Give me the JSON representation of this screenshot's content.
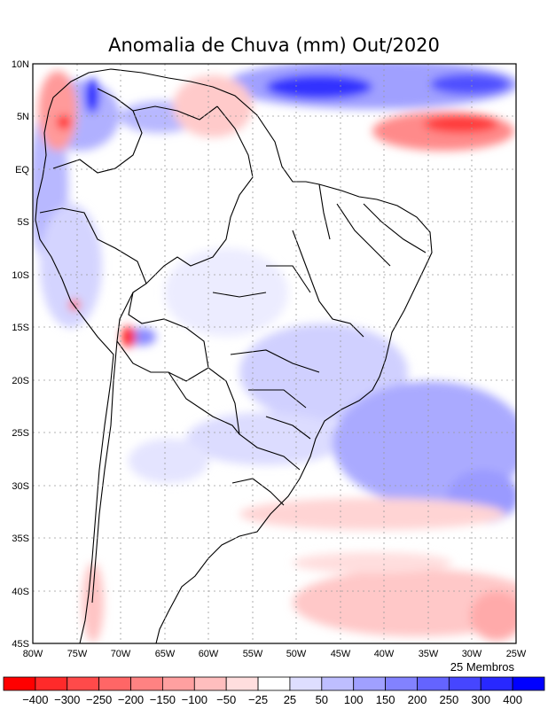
{
  "title": "Anomalia de Chuva (mm) Out/2020",
  "members_note": "25 Membros",
  "map": {
    "lat_labels": [
      "10N",
      "5N",
      "EQ",
      "5S",
      "10S",
      "15S",
      "20S",
      "25S",
      "30S",
      "35S",
      "40S",
      "45S"
    ],
    "lon_labels": [
      "80W",
      "75W",
      "70W",
      "65W",
      "60W",
      "55W",
      "50W",
      "45W",
      "40W",
      "35W",
      "30W",
      "25W"
    ],
    "gridlines": true
  },
  "colorbar": {
    "labels": [
      "−400",
      "−300",
      "−250",
      "−200",
      "−150",
      "−100",
      "−50",
      "−25",
      "25",
      "50",
      "100",
      "150",
      "200",
      "250",
      "300",
      "400"
    ],
    "colors": [
      "#ff0000",
      "#ff2a2a",
      "#ff4a4a",
      "#ff6666",
      "#ff8282",
      "#ffa0a0",
      "#ffbebe",
      "#ffdede",
      "#ffffff",
      "#dedeff",
      "#bebeff",
      "#a0a0ff",
      "#8282ff",
      "#6464ff",
      "#4646ff",
      "#2828ff",
      "#0000ff"
    ]
  }
}
